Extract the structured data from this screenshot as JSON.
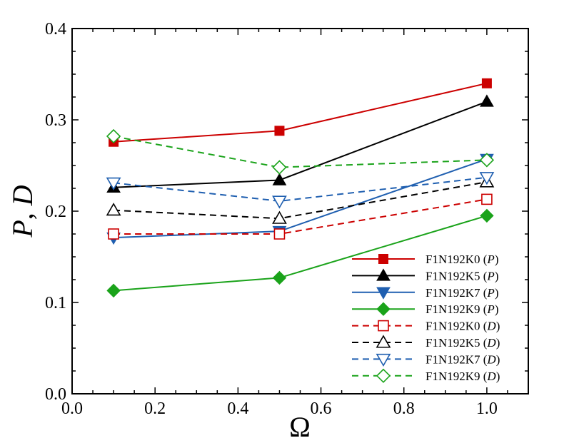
{
  "chart_data": {
    "type": "line",
    "title": "",
    "xlabel": "Ω",
    "ylabel": "P, D",
    "ylabel_parts": [
      "P",
      ", ",
      "D"
    ],
    "xlim": [
      0.0,
      1.1
    ],
    "ylim": [
      0.0,
      0.4
    ],
    "xticks": [
      "0.0",
      "0.2",
      "0.4",
      "0.6",
      "0.8",
      "1.0"
    ],
    "yticks": [
      "0.0",
      "0.1",
      "0.2",
      "0.3",
      "0.4"
    ],
    "grid": false,
    "legend_position": "bottom-right",
    "series": [
      {
        "name": "F1N192K0",
        "qualifier": "P",
        "color": "#cc0000",
        "dash": "solid",
        "marker": "square",
        "filled": true,
        "x": [
          0.1,
          0.5,
          1.0
        ],
        "y": [
          0.276,
          0.288,
          0.34
        ]
      },
      {
        "name": "F1N192K5",
        "qualifier": "P",
        "color": "#000000",
        "dash": "solid",
        "marker": "triangle-up",
        "filled": true,
        "x": [
          0.1,
          0.5,
          1.0
        ],
        "y": [
          0.226,
          0.234,
          0.32
        ]
      },
      {
        "name": "F1N192K7",
        "qualifier": "P",
        "color": "#1f5fb0",
        "dash": "solid",
        "marker": "triangle-down",
        "filled": true,
        "x": [
          0.1,
          0.5,
          1.0
        ],
        "y": [
          0.171,
          0.178,
          0.257
        ]
      },
      {
        "name": "F1N192K9",
        "qualifier": "P",
        "color": "#1aa31a",
        "dash": "solid",
        "marker": "diamond",
        "filled": true,
        "x": [
          0.1,
          0.5,
          1.0
        ],
        "y": [
          0.113,
          0.127,
          0.195
        ]
      },
      {
        "name": "F1N192K0",
        "qualifier": "D",
        "color": "#cc0000",
        "dash": "dashed",
        "marker": "square",
        "filled": false,
        "x": [
          0.1,
          0.5,
          1.0
        ],
        "y": [
          0.175,
          0.175,
          0.213
        ]
      },
      {
        "name": "F1N192K5",
        "qualifier": "D",
        "color": "#000000",
        "dash": "dashed",
        "marker": "triangle-up",
        "filled": false,
        "x": [
          0.1,
          0.5,
          1.0
        ],
        "y": [
          0.201,
          0.192,
          0.232
        ]
      },
      {
        "name": "F1N192K7",
        "qualifier": "D",
        "color": "#1f5fb0",
        "dash": "dashed",
        "marker": "triangle-down",
        "filled": false,
        "x": [
          0.1,
          0.5,
          1.0
        ],
        "y": [
          0.231,
          0.211,
          0.237
        ]
      },
      {
        "name": "F1N192K9",
        "qualifier": "D",
        "color": "#1aa31a",
        "dash": "dashed",
        "marker": "diamond",
        "filled": false,
        "x": [
          0.1,
          0.5,
          1.0
        ],
        "y": [
          0.282,
          0.248,
          0.256
        ]
      }
    ]
  }
}
